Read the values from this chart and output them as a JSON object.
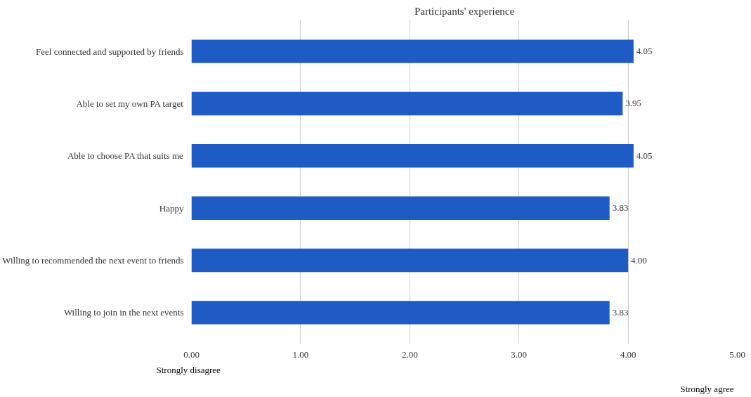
{
  "chart_data": {
    "type": "bar",
    "orientation": "horizontal",
    "title": "Participants' experience",
    "categories": [
      "Feel connected and supported by friends",
      "Able to set my own PA target",
      "Able to choose PA that suits me",
      "Happy",
      "Willing to recommended the next event to friends",
      "Willing to join in the next events"
    ],
    "values": [
      4.05,
      3.95,
      4.05,
      3.83,
      4.0,
      3.83
    ],
    "value_labels": [
      "4.05",
      "3.95",
      "4.05",
      "3.83",
      "4.00",
      "3.83"
    ],
    "color": "#1f5bc4",
    "xlim": [
      0,
      5
    ],
    "xticks": [
      {
        "value": 0,
        "label": "0.00"
      },
      {
        "value": 1,
        "label": "1.00"
      },
      {
        "value": 2,
        "label": "2.00"
      },
      {
        "value": 3,
        "label": "3.00"
      },
      {
        "value": 4,
        "label": "4.00"
      },
      {
        "value": 5,
        "label": "5.00"
      }
    ],
    "grid": "x",
    "annotations": [
      "Strongly disagree",
      "Strongly agree"
    ]
  }
}
